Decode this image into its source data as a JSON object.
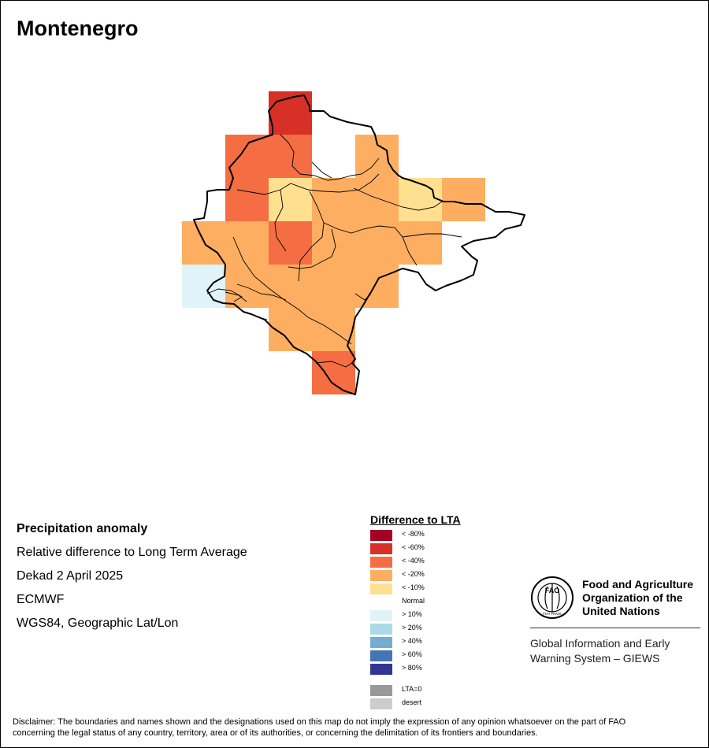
{
  "map": {
    "title": "Montenegro",
    "grid_cells": [
      {
        "row": 0,
        "col": 2,
        "class": "lt_-60"
      },
      {
        "row": 1,
        "col": 1,
        "class": "lt_-40"
      },
      {
        "row": 1,
        "col": 2,
        "class": "lt_-40"
      },
      {
        "row": 1,
        "col": 4,
        "class": "lt_-20"
      },
      {
        "row": 2,
        "col": 1,
        "class": "lt_-40"
      },
      {
        "row": 2,
        "col": 2,
        "class": "lt_-10"
      },
      {
        "row": 2,
        "col": 3,
        "class": "lt_-20"
      },
      {
        "row": 2,
        "col": 4,
        "class": "lt_-20"
      },
      {
        "row": 2,
        "col": 5,
        "class": "lt_-10"
      },
      {
        "row": 2,
        "col": 6,
        "class": "lt_-20"
      },
      {
        "row": 3,
        "col": 0,
        "class": "lt_-20"
      },
      {
        "row": 3,
        "col": 1,
        "class": "lt_-20"
      },
      {
        "row": 3,
        "col": 2,
        "class": "lt_-40"
      },
      {
        "row": 3,
        "col": 3,
        "class": "lt_-20"
      },
      {
        "row": 3,
        "col": 4,
        "class": "lt_-20"
      },
      {
        "row": 3,
        "col": 5,
        "class": "lt_-20"
      },
      {
        "row": 4,
        "col": 0,
        "class": "gt_10"
      },
      {
        "row": 4,
        "col": 1,
        "class": "lt_-20"
      },
      {
        "row": 4,
        "col": 2,
        "class": "lt_-20"
      },
      {
        "row": 4,
        "col": 3,
        "class": "lt_-20"
      },
      {
        "row": 4,
        "col": 4,
        "class": "lt_-20"
      },
      {
        "row": 5,
        "col": 2,
        "class": "lt_-20"
      },
      {
        "row": 5,
        "col": 3,
        "class": "lt_-20"
      },
      {
        "row": 6,
        "col": 3,
        "class": "lt_-40"
      }
    ]
  },
  "info": {
    "heading": "Precipitation anomaly",
    "line1": "Relative difference to Long Term Average",
    "line2": "Dekad 2 April 2025",
    "line3": "ECMWF",
    "line4": "WGS84, Geographic Lat/Lon"
  },
  "legend": {
    "title": "Difference to LTA",
    "items": [
      {
        "label": "< -80%",
        "color": "#a50026"
      },
      {
        "label": "< -60%",
        "color": "#d73027"
      },
      {
        "label": "< -40%",
        "color": "#f46d43"
      },
      {
        "label": "< -20%",
        "color": "#fdae61"
      },
      {
        "label": "< -10%",
        "color": "#fee090"
      },
      {
        "label": "Normal",
        "color": "#ffffff"
      },
      {
        "label": "> 10%",
        "color": "#e0f3f8"
      },
      {
        "label": "> 20%",
        "color": "#abd9e9"
      },
      {
        "label": "> 40%",
        "color": "#74add1"
      },
      {
        "label": "> 60%",
        "color": "#4575b4"
      },
      {
        "label": "> 80%",
        "color": "#313695"
      },
      {
        "label": "LTA=0",
        "color": "#999999"
      },
      {
        "label": "desert",
        "color": "#cccccc"
      }
    ]
  },
  "fao": {
    "name_line1": "Food and Agriculture",
    "name_line2": "Organization of the",
    "name_line3": "United Nations",
    "giews_line1": "Global Information and Early",
    "giews_line2": "Warning System – GIEWS",
    "logo_text": "FAO",
    "logo_motto": "FIAT PANIS"
  },
  "disclaimer": {
    "line1": "Disclaimer: The boundaries and names shown and the designations used on this map do not imply the expression of any opinion whatsoever on the part of FAO",
    "line2": "concerning the legal status of any country, territory, area or of its authorities, or concerning the delimitation of its frontiers and boundaries."
  }
}
